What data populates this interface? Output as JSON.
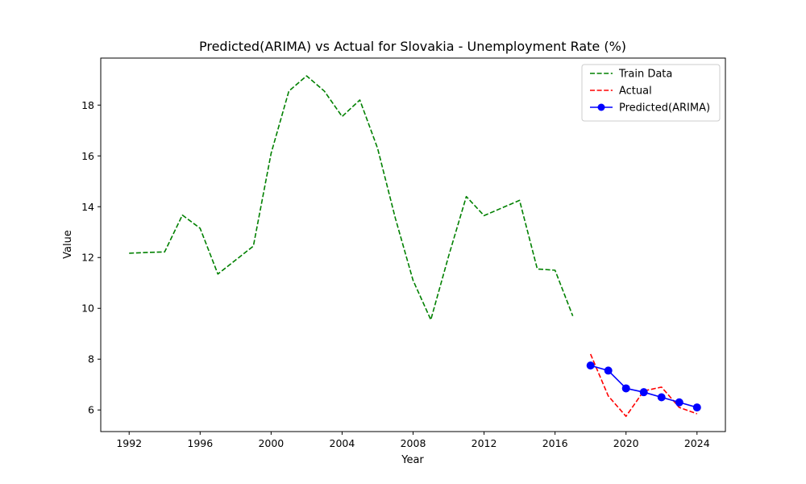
{
  "chart_data": {
    "type": "line",
    "title": "Predicted(ARIMA) vs Actual for Slovakia - Unemployment Rate (%)",
    "xlabel": "Year",
    "ylabel": "Value",
    "xlim": [
      1990.4,
      2025.6
    ],
    "ylim": [
      5.15,
      19.85
    ],
    "xticks": [
      1992,
      1996,
      2000,
      2004,
      2008,
      2012,
      2016,
      2020,
      2024
    ],
    "yticks": [
      6,
      8,
      10,
      12,
      14,
      16,
      18
    ],
    "grid": false,
    "legend_position": "top-right",
    "series": [
      {
        "name": "Train Data",
        "color": "#008000",
        "style": "dashed",
        "marker": "none",
        "x": [
          1992,
          1993,
          1994,
          1995,
          1996,
          1997,
          1998,
          1999,
          2000,
          2001,
          2002,
          2003,
          2004,
          2005,
          2006,
          2007,
          2008,
          2009,
          2010,
          2011,
          2012,
          2013,
          2014,
          2015,
          2016,
          2017
        ],
        "y": [
          12.17,
          12.2,
          12.22,
          13.67,
          13.15,
          11.35,
          11.9,
          12.45,
          16.1,
          18.55,
          19.15,
          18.55,
          17.55,
          18.2,
          16.3,
          13.55,
          11.1,
          9.55,
          12.05,
          14.4,
          13.65,
          13.95,
          14.25,
          11.55,
          11.5,
          9.7
        ]
      },
      {
        "name": "Actual",
        "color": "#ff0000",
        "style": "dashed",
        "marker": "none",
        "x": [
          2018,
          2019,
          2020,
          2021,
          2022,
          2023,
          2024
        ],
        "y": [
          8.2,
          6.55,
          5.75,
          6.75,
          6.9,
          6.1,
          5.85
        ]
      },
      {
        "name": "Predicted(ARIMA)",
        "color": "#0000ff",
        "style": "solid",
        "marker": "circle",
        "x": [
          2018,
          2019,
          2020,
          2021,
          2022,
          2023,
          2024
        ],
        "y": [
          7.75,
          7.55,
          6.85,
          6.7,
          6.5,
          6.3,
          6.1
        ]
      }
    ]
  }
}
